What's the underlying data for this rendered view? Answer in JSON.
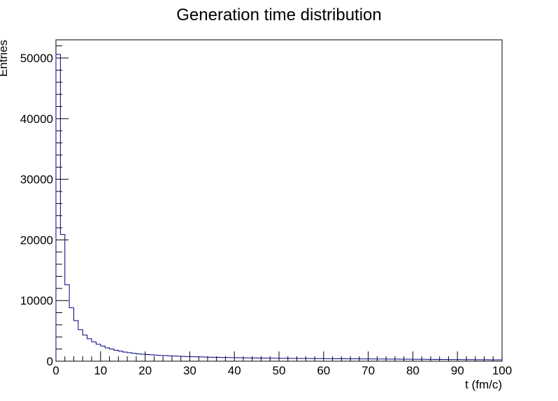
{
  "chart_data": {
    "type": "histogram",
    "title": "Generation time distribution",
    "xlabel": "t (fm/c)",
    "ylabel": "Entries",
    "xlim": [
      0,
      100
    ],
    "ylim": [
      0,
      53000
    ],
    "bin_width": 1,
    "x_tick_labels": [
      "0",
      "10",
      "20",
      "30",
      "40",
      "50",
      "60",
      "70",
      "80",
      "90",
      "100"
    ],
    "y_tick_labels": [
      "0",
      "10000",
      "20000",
      "30000",
      "40000",
      "50000"
    ],
    "grid": false,
    "line_color": "#000080",
    "values": [
      50600,
      20900,
      12600,
      8800,
      6700,
      5200,
      4300,
      3700,
      3200,
      2800,
      2500,
      2200,
      2000,
      1800,
      1650,
      1500,
      1400,
      1300,
      1200,
      1150,
      1100,
      1050,
      1000,
      950,
      920,
      880,
      850,
      820,
      790,
      760,
      740,
      720,
      700,
      680,
      660,
      640,
      630,
      610,
      600,
      590,
      570,
      560,
      550,
      540,
      530,
      520,
      510,
      500,
      495,
      490,
      480,
      470,
      465,
      460,
      450,
      445,
      440,
      435,
      430,
      425,
      420,
      415,
      410,
      405,
      400,
      395,
      390,
      385,
      380,
      375,
      370,
      365,
      360,
      355,
      350,
      345,
      340,
      335,
      330,
      325,
      320,
      315,
      310,
      305,
      300,
      295,
      290,
      285,
      280,
      275,
      270,
      265,
      260,
      255,
      250,
      245,
      240,
      235,
      230,
      225
    ]
  }
}
